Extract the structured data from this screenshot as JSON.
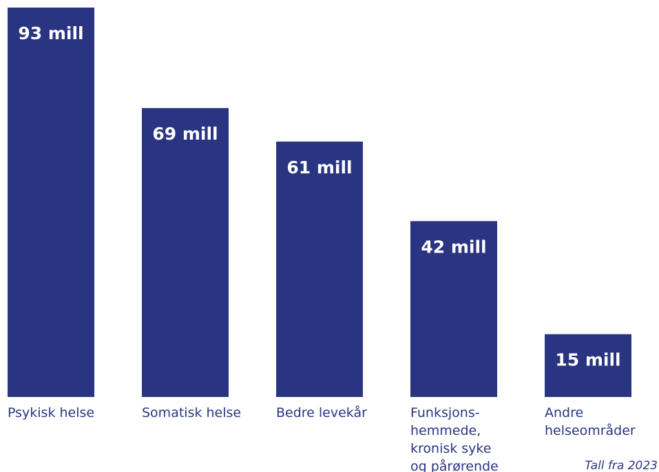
{
  "chart_data": {
    "type": "bar",
    "categories": [
      [
        "Psykisk helse"
      ],
      [
        "Somatisk helse"
      ],
      [
        "Bedre levekår"
      ],
      [
        "Funksjons-",
        "hemmede,",
        "kronisk syke",
        "og pårørende"
      ],
      [
        "Andre",
        "helseområder"
      ]
    ],
    "values": [
      93,
      69,
      61,
      42,
      15
    ],
    "data_labels": [
      "93 mill",
      "69 mill",
      "61 mill",
      "42 mill",
      "15 mill"
    ],
    "ylim": [
      0,
      93
    ],
    "grid": false,
    "legend": "none",
    "annotation": "Tall fra 2023",
    "colors": {
      "bar": "#2a3582",
      "label_text": "#ffffff",
      "axis_text": "#2a3582"
    }
  }
}
